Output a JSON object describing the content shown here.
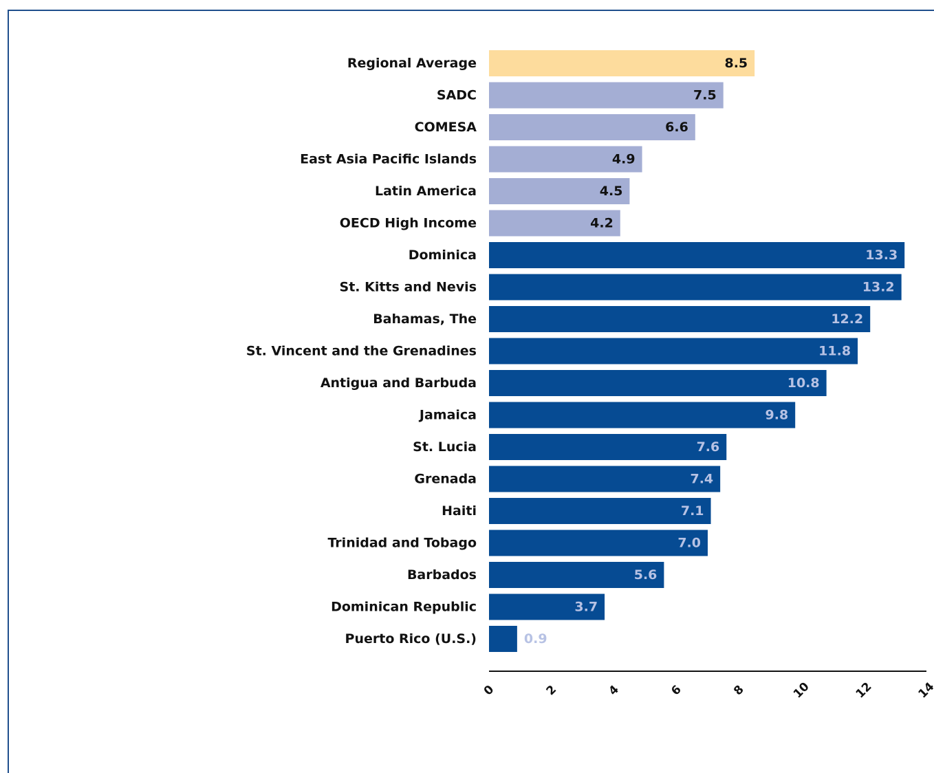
{
  "chart_data": {
    "type": "bar",
    "orientation": "horizontal",
    "title": "",
    "xlabel": "",
    "ylabel": "",
    "xlim": [
      0,
      14
    ],
    "x_ticks": [
      "0",
      "2",
      "4",
      "6",
      "8",
      "10",
      "12",
      "14"
    ],
    "grid": false,
    "legend": "none",
    "categories": [
      "Regional Average",
      "SADC",
      "COMESA",
      "East Asia Pacific Islands",
      "Latin America",
      "OECD High Income",
      "Dominica",
      "St. Kitts and Nevis",
      "Bahamas, The",
      "St. Vincent and the Grenadines",
      "Antigua and Barbuda",
      "Jamaica",
      "St. Lucia",
      "Grenada",
      "Haiti",
      "Trinidad and Tobago",
      "Barbados",
      "Dominican Republic",
      "Puerto Rico (U.S.)"
    ],
    "values": [
      8.5,
      7.5,
      6.6,
      4.9,
      4.5,
      4.2,
      13.3,
      13.2,
      12.2,
      11.8,
      10.8,
      9.8,
      7.6,
      7.4,
      7.1,
      7.0,
      5.6,
      3.7,
      0.9
    ],
    "value_labels": [
      "8.5",
      "7.5",
      "6.6",
      "4.9",
      "4.5",
      "4.2",
      "13.3",
      "13.2",
      "12.2",
      "11.8",
      "10.8",
      "9.8",
      "7.6",
      "7.4",
      "7.1",
      "7.0",
      "5.6",
      "3.7",
      "0.9"
    ],
    "groups": [
      "average",
      "region",
      "region",
      "region",
      "region",
      "region",
      "country",
      "country",
      "country",
      "country",
      "country",
      "country",
      "country",
      "country",
      "country",
      "country",
      "country",
      "country",
      "country"
    ],
    "colors": {
      "average": "#fddc9d",
      "region": "#a4aed4",
      "country": "#064b93",
      "label_on_light": "#111111",
      "label_on_dark": "#b7c2e4",
      "axis": "#111111",
      "frame": "#1f4e8c"
    }
  }
}
